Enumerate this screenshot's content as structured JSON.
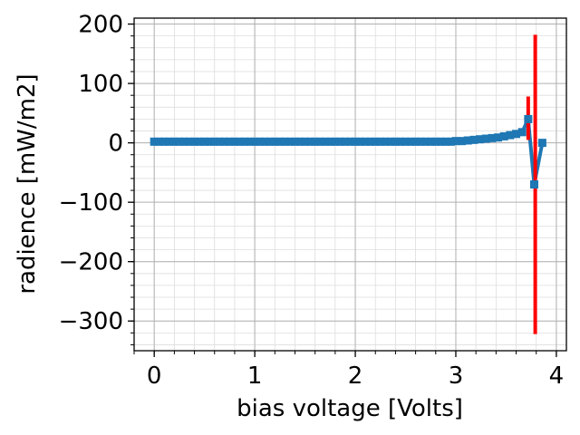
{
  "chart_data": {
    "type": "line",
    "xlabel": "bias voltage [Volts]",
    "ylabel": "radience [mW/m2]",
    "xlim": [
      -0.2,
      4.1
    ],
    "ylim": [
      -350,
      210
    ],
    "xticks": [
      0,
      1,
      2,
      3,
      4
    ],
    "xtick_labels": [
      "0",
      "1",
      "2",
      "3",
      "4"
    ],
    "yticks": [
      -300,
      -200,
      -100,
      0,
      100,
      200
    ],
    "ytick_labels": [
      "−300",
      "−200",
      "−100",
      "0",
      "100",
      "200"
    ],
    "grid": true,
    "colors": {
      "line": "#1f77b4",
      "errorbar": "#ff0000"
    },
    "series": [
      {
        "x": [
          0.0,
          0.05,
          0.1,
          0.15,
          0.2,
          0.25,
          0.3,
          0.35,
          0.4,
          0.45,
          0.5,
          0.55,
          0.6,
          0.65,
          0.7,
          0.75,
          0.8,
          0.85,
          0.9,
          0.95,
          1.0,
          1.05,
          1.1,
          1.15,
          1.2,
          1.25,
          1.3,
          1.35,
          1.4,
          1.45,
          1.5,
          1.55,
          1.6,
          1.65,
          1.7,
          1.75,
          1.8,
          1.85,
          1.9,
          1.95,
          2.0,
          2.05,
          2.1,
          2.15,
          2.2,
          2.25,
          2.3,
          2.35,
          2.4,
          2.45,
          2.5,
          2.55,
          2.6,
          2.65,
          2.7,
          2.75,
          2.8,
          2.85,
          2.9,
          2.95,
          3.0,
          3.06,
          3.12,
          3.18,
          3.24,
          3.3,
          3.36,
          3.42,
          3.48,
          3.54,
          3.6,
          3.66,
          3.72,
          3.78,
          3.86
        ],
        "y": [
          2,
          2,
          2,
          2,
          2,
          2,
          2,
          2,
          2,
          2,
          2,
          2,
          2,
          2,
          2,
          2,
          2,
          2,
          2,
          2,
          2,
          2,
          2,
          2,
          2,
          2,
          2,
          2,
          2,
          2,
          2,
          2,
          2,
          2,
          2,
          2,
          2,
          2,
          2,
          2,
          2,
          2,
          2,
          2,
          2,
          2,
          2,
          2,
          2,
          2,
          2,
          2,
          2,
          2,
          2,
          2,
          2,
          2,
          2,
          2,
          3,
          3,
          4,
          5,
          6,
          7,
          8,
          9,
          11,
          13,
          15,
          18,
          40,
          -70,
          0
        ]
      }
    ],
    "errorbars": [
      {
        "x": 3.72,
        "y_low": 5,
        "y_high": 78
      },
      {
        "x": 3.79,
        "y_low": -322,
        "y_high": 182
      }
    ]
  }
}
